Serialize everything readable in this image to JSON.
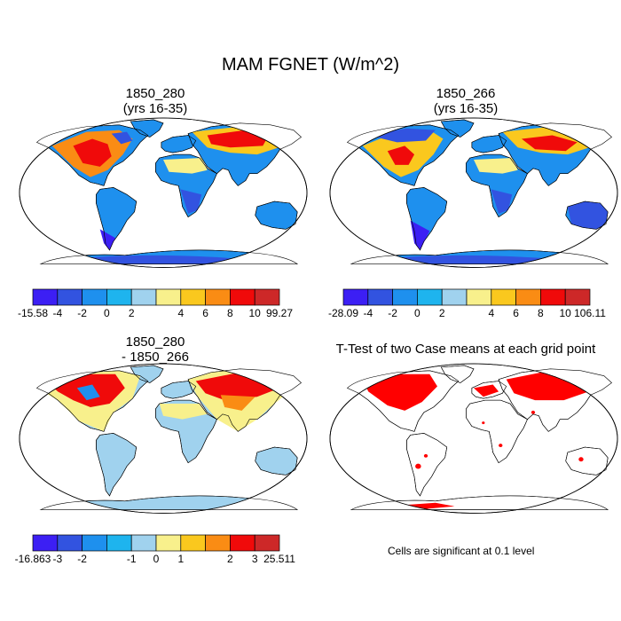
{
  "title": "MAM FGNET (W/m^2)",
  "chart_data": [
    {
      "type": "heatmap",
      "kind": "map",
      "title_line1": "1850_280",
      "title_line2": "(yrs 16-35)",
      "colorbar": {
        "labels": [
          "-15.58",
          "-4",
          "-2",
          "0",
          "2",
          "4",
          "6",
          "8",
          "10",
          "99.27"
        ],
        "colors": [
          "#3c1ff4",
          "#3253e0",
          "#1e90ee",
          "#1eb4ee",
          "#a0d2ee",
          "#f8f08c",
          "#fac81e",
          "#fa8c14",
          "#f00a0a",
          "#cd2828"
        ]
      }
    },
    {
      "type": "heatmap",
      "kind": "map",
      "title_line1": "1850_266",
      "title_line2": "(yrs 16-35)",
      "colorbar": {
        "labels": [
          "-28.09",
          "-4",
          "-2",
          "0",
          "2",
          "4",
          "6",
          "8",
          "10",
          "106.11"
        ],
        "colors": [
          "#3c1ff4",
          "#3253e0",
          "#1e90ee",
          "#1eb4ee",
          "#a0d2ee",
          "#f8f08c",
          "#fac81e",
          "#fa8c14",
          "#f00a0a",
          "#cd2828"
        ]
      }
    },
    {
      "type": "heatmap",
      "kind": "map",
      "title_line1": "1850_280",
      "title_line2": "- 1850_266",
      "colorbar": {
        "labels": [
          "-16.863",
          "-3",
          "-2",
          "-1",
          "0",
          "1",
          "2",
          "3",
          "25.511"
        ],
        "colors": [
          "#3c1ff4",
          "#3253e0",
          "#1e90ee",
          "#1eb4ee",
          "#a0d2ee",
          "#f8f08c",
          "#fac81e",
          "#fa8c14",
          "#f00a0a",
          "#cd2828"
        ]
      }
    },
    {
      "type": "heatmap",
      "kind": "map",
      "title_line1": "T-Test of two Case means at each grid point",
      "note": "Cells are significant at 0.1 level",
      "color": "#ff0000"
    }
  ]
}
